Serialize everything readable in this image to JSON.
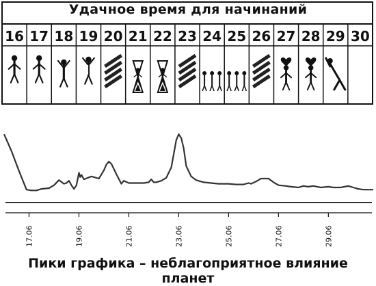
{
  "title": "Удачное время для начинаний",
  "caption": "Пики графика – неблагоприятное влияние планет",
  "calendar": {
    "days": [
      "16",
      "17",
      "18",
      "19",
      "20",
      "21",
      "22",
      "23",
      "24",
      "25",
      "26",
      "27",
      "28",
      "29",
      "30"
    ],
    "icons": [
      "handshake-figures-icon",
      "handshake-figures-icon",
      "cheering-figure-icon",
      "referee-figure-icon",
      "hatched-unfavorable-icon",
      "hourglass-figures-icon",
      "hourglass-figures-icon",
      "hatched-unfavorable-icon",
      "group-of-figures-icon",
      "group-of-figures-icon",
      "hatched-unfavorable-icon",
      "couple-with-heart-icon",
      "couple-with-heart-icon",
      "stretching-figure-icon",
      "empty-cell"
    ]
  },
  "colors": {
    "line": "#333333",
    "ink": "#111111",
    "hatch": "#222222"
  },
  "chart_data": {
    "type": "line",
    "xlabel": "",
    "ylabel": "",
    "xlim": [
      16.0,
      30.8
    ],
    "ylim": [
      0,
      100
    ],
    "tick_labels": [
      "17.06",
      "19.06",
      "21.06",
      "23.06",
      "25.06",
      "27.06",
      "29.06"
    ],
    "tick_positions": [
      17,
      19,
      21,
      23,
      25,
      27,
      29
    ],
    "grid": false,
    "series": [
      {
        "name": "",
        "x": [
          16.0,
          16.3,
          16.6,
          16.9,
          17.1,
          17.3,
          17.5,
          17.8,
          18.0,
          18.2,
          18.4,
          18.5,
          18.6,
          18.7,
          18.8,
          18.9,
          19.0,
          19.05,
          19.1,
          19.2,
          19.5,
          19.8,
          20.0,
          20.1,
          20.2,
          20.3,
          20.5,
          20.7,
          20.8,
          21.0,
          21.3,
          21.6,
          21.8,
          21.9,
          22.0,
          22.1,
          22.3,
          22.5,
          22.7,
          22.8,
          22.9,
          23.0,
          23.1,
          23.2,
          23.3,
          23.5,
          23.7,
          24.0,
          24.3,
          24.6,
          24.8,
          25.0,
          25.3,
          25.6,
          25.8,
          25.9,
          26.1,
          26.3,
          26.6,
          26.8,
          27.0,
          27.3,
          27.5,
          27.8,
          28.0,
          28.2,
          28.4,
          28.7,
          29.0,
          29.2,
          29.5,
          29.8,
          30.0,
          30.2,
          30.4,
          30.6,
          30.8
        ],
        "y": [
          85,
          62,
          35,
          10,
          9,
          9,
          11,
          12,
          16,
          23,
          18,
          19,
          22,
          16,
          11,
          16,
          33,
          27,
          30,
          24,
          28,
          25,
          36,
          44,
          48,
          45,
          31,
          18,
          22,
          19,
          19,
          19,
          20,
          24,
          20,
          20,
          22,
          26,
          40,
          58,
          77,
          85,
          80,
          66,
          42,
          28,
          23,
          20,
          19,
          18,
          18,
          18,
          17,
          17,
          19,
          18,
          21,
          25,
          25,
          20,
          16,
          15,
          14,
          13,
          15,
          14,
          15,
          13,
          14,
          13,
          13,
          15,
          13,
          11,
          10,
          10,
          10
        ]
      }
    ]
  }
}
